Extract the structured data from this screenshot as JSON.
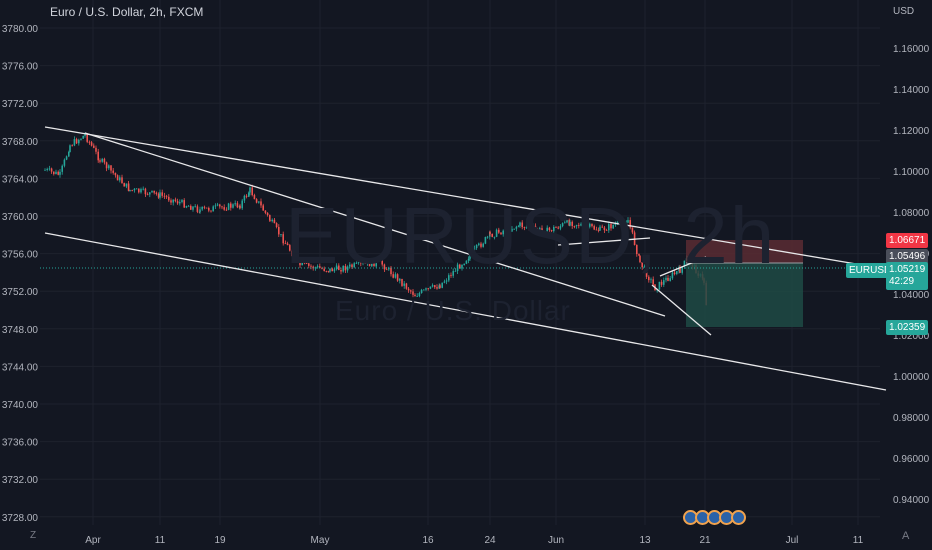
{
  "title": "Euro / U.S. Dollar, 2h, FXCM",
  "watermark": {
    "symbol": "EURUSD, 2h",
    "name": "Euro / U.S. Dollar"
  },
  "left_axis": [
    "3780.00",
    "3776.00",
    "3772.00",
    "3768.00",
    "3764.00",
    "3760.00",
    "3756.00",
    "3752.00",
    "3748.00",
    "3744.00",
    "3740.00",
    "3736.00",
    "3732.00",
    "3728.00"
  ],
  "right_axis": [
    "USD",
    "1.16000",
    "1.14000",
    "1.12000",
    "1.10000",
    "1.08000",
    "1.06000",
    "1.04000",
    "1.02000",
    "1.00000",
    "0.98000",
    "0.96000",
    "0.94000"
  ],
  "x_axis": [
    "Apr",
    "11",
    "19",
    "May",
    "16",
    "24",
    "Jun",
    "13",
    "21",
    "Jul",
    "11"
  ],
  "price_tags": {
    "stop": "1.06671",
    "entry": "1.05496",
    "symbol": "EURUSD",
    "last": "1.05219",
    "countdown": "42:29",
    "target": "1.02359"
  },
  "buttons": {
    "zoom": "Z",
    "auto": "A"
  },
  "colors": {
    "bg": "#131722",
    "up": "#26a69a",
    "down": "#ef5350",
    "stop_zone": "#5b2b33",
    "target_zone": "#1e4a44"
  }
}
